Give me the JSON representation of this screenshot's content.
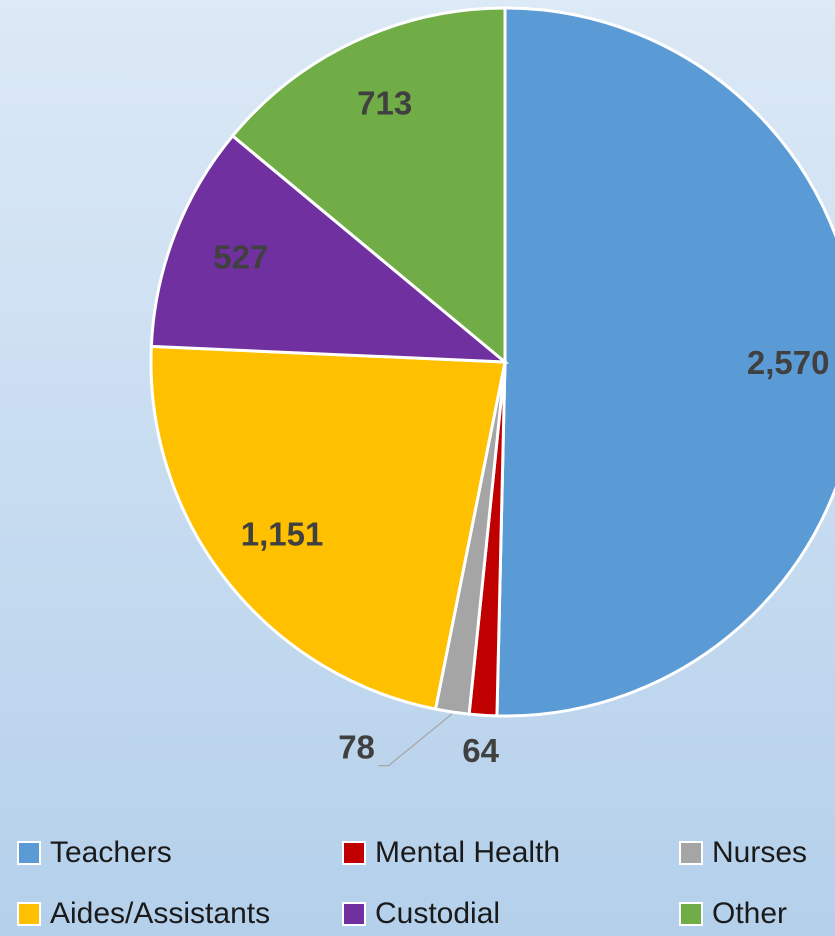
{
  "chart_data": {
    "type": "pie",
    "categories": [
      "Teachers",
      "Mental Health",
      "Nurses",
      "Aides/Assistants",
      "Custodial",
      "Other"
    ],
    "values": [
      2570,
      64,
      78,
      1151,
      527,
      713
    ],
    "value_labels": [
      "2,570",
      "64",
      "78",
      "1,151",
      "527",
      "713"
    ],
    "colors": [
      "#5b9bd5",
      "#c00000",
      "#a5a5a5",
      "#ffc000",
      "#7030a0",
      "#70ad47"
    ],
    "legend": "bottom"
  }
}
